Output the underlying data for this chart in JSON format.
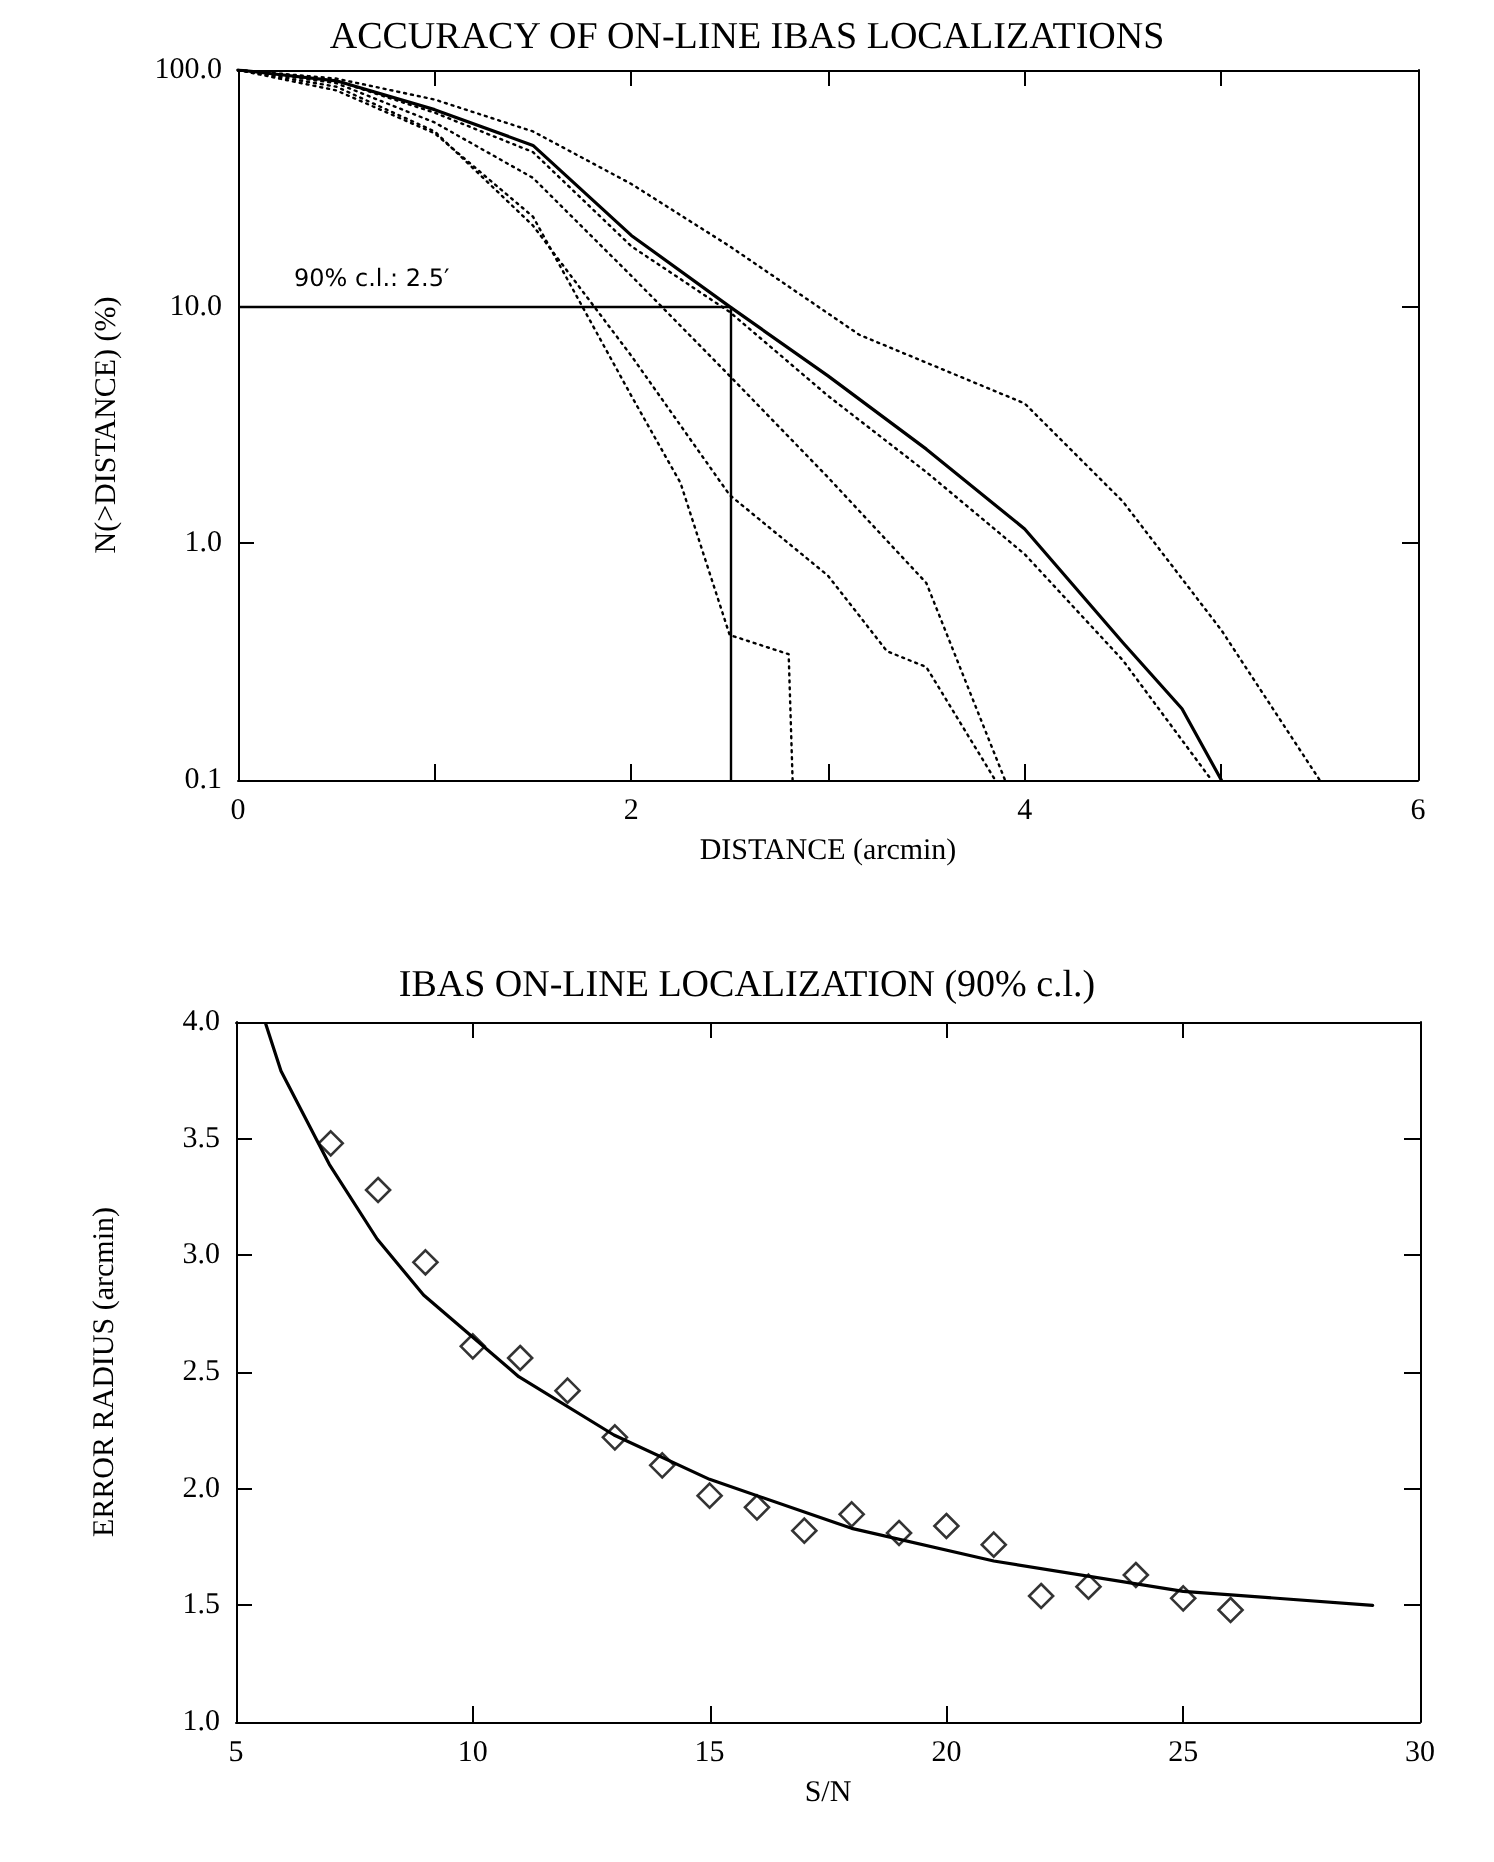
{
  "chart_data": [
    {
      "type": "line",
      "title": "ACCURACY OF ON-LINE IBAS LOCALIZATIONS",
      "xlabel": "DISTANCE (arcmin)",
      "ylabel": "N(>DISTANCE) (%)",
      "log": "y",
      "xlim": [
        0,
        6
      ],
      "xticks": [
        0,
        {
          "value": 1,
          "label": null
        },
        2,
        {
          "value": 3,
          "label": null
        },
        4,
        {
          "value": 5,
          "label": null
        },
        6
      ],
      "ylim": [
        0.1,
        100
      ],
      "yticks": [
        {
          "value": 0.1,
          "label": "0.1"
        },
        {
          "value": 1,
          "label": "1.0"
        },
        {
          "value": 10,
          "label": "10.0"
        },
        {
          "value": 100,
          "label": "100.0"
        }
      ],
      "ref_lines": [
        {
          "axis": "y",
          "value": 10,
          "color": "#000000"
        },
        {
          "axis": "x",
          "value": 2.5,
          "color": "#000000"
        }
      ],
      "annotations": [
        "90% c.l.: 2.5′"
      ],
      "series": [
        {
          "color": "#000000",
          "line_style": "solid",
          "x": [
            0,
            0.5,
            1,
            1.5,
            2,
            2.5,
            3,
            3.5,
            4,
            4.5,
            4.8,
            5
          ],
          "values": [
            100,
            90,
            68,
            48,
            20,
            10,
            5.1,
            2.5,
            1.15,
            0.38,
            0.2,
            0.1
          ]
        },
        {
          "color": "#000000",
          "line_style": "dotted",
          "x": [
            0,
            0.5,
            1,
            1.5,
            2,
            2.5,
            3.16,
            4,
            4.5,
            5,
            5.5
          ],
          "values": [
            100,
            92,
            75,
            55,
            33,
            18,
            7.6,
            3.9,
            1.5,
            0.43,
            0.1
          ]
        },
        {
          "color": "#000000",
          "line_style": "dotted",
          "x": [
            0,
            0.5,
            1,
            1.5,
            2,
            2.5,
            3,
            3.5,
            4,
            4.5,
            4.95
          ],
          "values": [
            100,
            90,
            66,
            45,
            18,
            9.5,
            4.2,
            2,
            0.9,
            0.32,
            0.1
          ]
        },
        {
          "color": "#000000",
          "line_style": "dotted",
          "x": [
            0,
            0.5,
            1,
            1.5,
            2,
            2.5,
            3,
            3.5,
            3.9
          ],
          "values": [
            100,
            88,
            60,
            35,
            13.5,
            5.1,
            1.9,
            0.68,
            0.1
          ]
        },
        {
          "color": "#000000",
          "line_style": "dotted",
          "x": [
            0,
            0.5,
            1,
            1.5,
            2,
            2.5,
            3,
            3.3,
            3.5,
            3.85
          ],
          "values": [
            100,
            85,
            55,
            22,
            6.2,
            1.6,
            0.73,
            0.35,
            0.3,
            0.1
          ]
        },
        {
          "color": "#000000",
          "line_style": "dotted",
          "x": [
            0,
            0.5,
            1,
            1.5,
            2,
            2.25,
            2.5,
            2.8,
            2.82
          ],
          "values": [
            100,
            82,
            54,
            24,
            4.2,
            1.8,
            0.41,
            0.34,
            0.1
          ]
        }
      ]
    },
    {
      "type": "scatter",
      "title": "IBAS ON-LINE LOCALIZATION (90% c.l.)",
      "xlabel": "S/N",
      "ylabel": "ERROR RADIUS (arcmin)",
      "xlim": [
        5,
        30
      ],
      "xticks": [
        5,
        10,
        15,
        20,
        25,
        30
      ],
      "ylim": [
        1,
        4
      ],
      "yticks": [
        {
          "value": 1,
          "label": "1.0"
        },
        {
          "value": 1.5,
          "label": "1.5"
        },
        {
          "value": 2,
          "label": "2.0"
        },
        {
          "value": 2.5,
          "label": "2.5"
        },
        {
          "value": 3,
          "label": "3.0"
        },
        {
          "value": 3.5,
          "label": "3.5"
        },
        {
          "value": 4,
          "label": "4.0"
        }
      ],
      "series": [
        {
          "marker": "diamond",
          "color": "#000000",
          "x": [
            7,
            8,
            9,
            10,
            11,
            12,
            13,
            14,
            15,
            16,
            17,
            18,
            19,
            20,
            21,
            22,
            23,
            24,
            25,
            26
          ],
          "values": [
            3.48,
            3.28,
            2.97,
            2.61,
            2.56,
            2.42,
            2.22,
            2.1,
            1.97,
            1.92,
            1.82,
            1.89,
            1.81,
            1.84,
            1.76,
            1.54,
            1.58,
            1.63,
            1.53,
            1.48
          ]
        },
        {
          "type": "line",
          "line_style": "solid",
          "color": "#000000",
          "x": [
            5.63,
            5.95,
            6.97,
            7.98,
            8.96,
            10.97,
            12.98,
            15,
            18,
            21,
            25,
            29
          ],
          "values": [
            3.99,
            3.79,
            3.39,
            3.07,
            2.83,
            2.48,
            2.23,
            2.04,
            1.83,
            1.69,
            1.56,
            1.5
          ]
        }
      ]
    }
  ]
}
